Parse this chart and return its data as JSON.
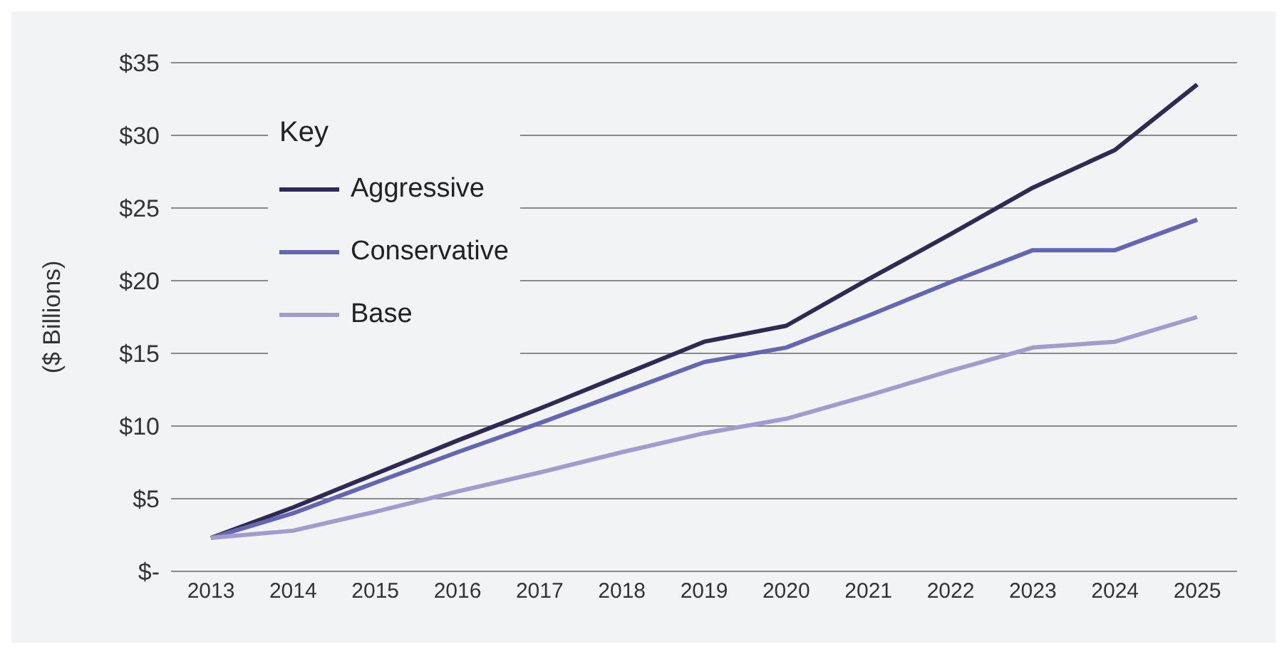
{
  "chart_data": {
    "type": "line",
    "ylabel": "($ Billions)",
    "legend_title": "Key",
    "legend": "top left",
    "grid": "y",
    "marker": "none",
    "line_style": "solid",
    "categories": [
      "2013",
      "2014",
      "2015",
      "2016",
      "2017",
      "2018",
      "2019",
      "2020",
      "2021",
      "2022",
      "2023",
      "2024",
      "2025"
    ],
    "ylim": [
      0,
      35
    ],
    "yticks": [
      {
        "value": 0,
        "label": "$-"
      },
      {
        "value": 5,
        "label": "$5"
      },
      {
        "value": 10,
        "label": "$10"
      },
      {
        "value": 15,
        "label": "$15"
      },
      {
        "value": 20,
        "label": "$20"
      },
      {
        "value": 25,
        "label": "$25"
      },
      {
        "value": 30,
        "label": "$30"
      },
      {
        "value": 35,
        "label": "$35"
      }
    ],
    "series": [
      {
        "name": "Aggressive",
        "color": "#2e2a54",
        "values": [
          2.3,
          4.4,
          6.7,
          9.0,
          11.2,
          13.5,
          15.8,
          16.9,
          20.1,
          23.2,
          26.4,
          29.0,
          33.5
        ]
      },
      {
        "name": "Conservative",
        "color": "#6566b0",
        "values": [
          2.3,
          4.0,
          6.1,
          8.2,
          10.2,
          12.3,
          14.4,
          15.4,
          17.6,
          19.9,
          22.1,
          22.1,
          24.2
        ]
      },
      {
        "name": "Base",
        "color": "#a09ccc",
        "values": [
          2.3,
          2.8,
          4.1,
          5.5,
          6.8,
          8.2,
          9.5,
          10.5,
          12.1,
          13.8,
          15.4,
          15.8,
          17.5
        ]
      }
    ]
  }
}
